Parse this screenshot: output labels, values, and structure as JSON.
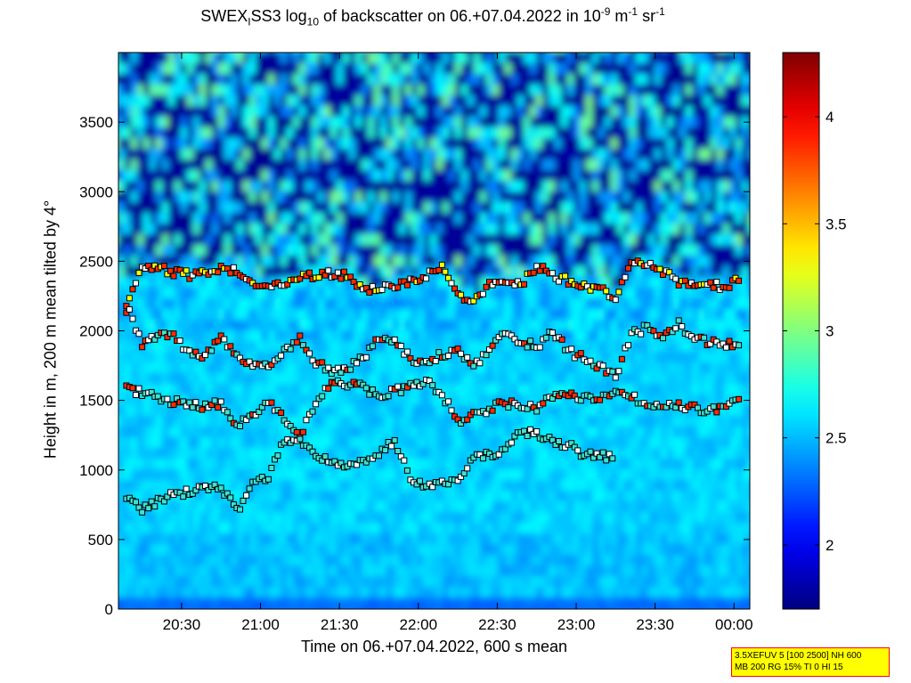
{
  "title": {
    "p1": "SWEX",
    "sub1": "I",
    "p2": "SS3 log",
    "sub2": "10",
    "p3": " of backscatter on 06.+07.04.2022 in 10",
    "sup1": "-9",
    "p4": " m",
    "sup2": "-1",
    "p5": " sr",
    "sup3": "-1"
  },
  "infobox": {
    "line1": "3.5XEFUV 5 [100 2500] NH 600",
    "line2": "MB 200 RG 15% TI 0 HI 15"
  },
  "chart_data": {
    "type": "heatmap",
    "xlabel": "Time on 06.+07.04.2022, 600 s mean",
    "ylabel": "Height in m, 200 m mean tilted by 4°",
    "x_range_hours": [
      20.1,
      24.1
    ],
    "ylim": [
      0,
      4000
    ],
    "x_ticks": [
      {
        "v": 20.5,
        "label": "20:30"
      },
      {
        "v": 21.0,
        "label": "21:00"
      },
      {
        "v": 21.5,
        "label": "21:30"
      },
      {
        "v": 22.0,
        "label": "22:00"
      },
      {
        "v": 22.5,
        "label": "22:30"
      },
      {
        "v": 23.0,
        "label": "23:00"
      },
      {
        "v": 23.5,
        "label": "23:30"
      },
      {
        "v": 24.0,
        "label": "00:00"
      }
    ],
    "y_ticks": [
      {
        "v": 0,
        "label": "0"
      },
      {
        "v": 500,
        "label": "500"
      },
      {
        "v": 1000,
        "label": "1000"
      },
      {
        "v": 1500,
        "label": "1500"
      },
      {
        "v": 2000,
        "label": "2000"
      },
      {
        "v": 2500,
        "label": "2500"
      },
      {
        "v": 3000,
        "label": "3000"
      },
      {
        "v": 3500,
        "label": "3500"
      }
    ],
    "colorbar": {
      "range": [
        1.7,
        4.3
      ],
      "ticks": [
        {
          "v": 2,
          "label": "2"
        },
        {
          "v": 2.5,
          "label": "2.5"
        },
        {
          "v": 3,
          "label": "3"
        },
        {
          "v": 3.5,
          "label": "3.5"
        },
        {
          "v": 4,
          "label": "4"
        }
      ],
      "colormap": "jet"
    },
    "layer_lines": [
      {
        "name": "upper-layer",
        "marker_class": "high",
        "points": [
          [
            20.15,
            2160
          ],
          [
            20.25,
            2480
          ],
          [
            20.35,
            2450
          ],
          [
            20.45,
            2420
          ],
          [
            20.55,
            2400
          ],
          [
            20.65,
            2420
          ],
          [
            20.75,
            2450
          ],
          [
            20.85,
            2430
          ],
          [
            20.95,
            2350
          ],
          [
            21.05,
            2320
          ],
          [
            21.15,
            2350
          ],
          [
            21.25,
            2400
          ],
          [
            21.35,
            2390
          ],
          [
            21.45,
            2410
          ],
          [
            21.55,
            2400
          ],
          [
            21.65,
            2280
          ],
          [
            21.75,
            2300
          ],
          [
            21.85,
            2320
          ],
          [
            21.95,
            2350
          ],
          [
            22.05,
            2400
          ],
          [
            22.15,
            2460
          ],
          [
            22.25,
            2260
          ],
          [
            22.35,
            2200
          ],
          [
            22.45,
            2350
          ],
          [
            22.55,
            2320
          ],
          [
            22.65,
            2330
          ],
          [
            22.75,
            2470
          ],
          [
            22.85,
            2400
          ],
          [
            22.95,
            2360
          ],
          [
            23.05,
            2330
          ],
          [
            23.15,
            2300
          ],
          [
            23.25,
            2250
          ],
          [
            23.35,
            2480
          ],
          [
            23.45,
            2470
          ],
          [
            23.55,
            2420
          ],
          [
            23.65,
            2350
          ],
          [
            23.75,
            2330
          ],
          [
            23.85,
            2330
          ],
          [
            23.95,
            2320
          ],
          [
            24.05,
            2400
          ]
        ]
      },
      {
        "name": "middle-layer",
        "marker_class": "mid",
        "points": [
          [
            20.15,
            2200
          ],
          [
            20.25,
            1900
          ],
          [
            20.35,
            1980
          ],
          [
            20.45,
            1960
          ],
          [
            20.55,
            1850
          ],
          [
            20.65,
            1800
          ],
          [
            20.75,
            1980
          ],
          [
            20.85,
            1800
          ],
          [
            20.95,
            1760
          ],
          [
            21.05,
            1750
          ],
          [
            21.15,
            1850
          ],
          [
            21.25,
            1960
          ],
          [
            21.35,
            1780
          ],
          [
            21.45,
            1720
          ],
          [
            21.55,
            1730
          ],
          [
            21.65,
            1800
          ],
          [
            21.75,
            1940
          ],
          [
            21.85,
            1920
          ],
          [
            21.95,
            1800
          ],
          [
            22.05,
            1780
          ],
          [
            22.15,
            1830
          ],
          [
            22.25,
            1850
          ],
          [
            22.35,
            1750
          ],
          [
            22.45,
            1860
          ],
          [
            22.55,
            1980
          ],
          [
            22.65,
            1930
          ],
          [
            22.75,
            1880
          ],
          [
            22.85,
            2000
          ],
          [
            22.95,
            1850
          ],
          [
            23.05,
            1800
          ],
          [
            23.15,
            1730
          ],
          [
            23.25,
            1680
          ],
          [
            23.35,
            1980
          ],
          [
            23.45,
            2020
          ],
          [
            23.55,
            1970
          ],
          [
            23.65,
            2050
          ],
          [
            23.75,
            1940
          ],
          [
            23.85,
            1920
          ],
          [
            23.95,
            1900
          ],
          [
            24.05,
            1920
          ]
        ]
      },
      {
        "name": "lower-layer",
        "marker_class": "low",
        "points": [
          [
            20.15,
            1580
          ],
          [
            20.25,
            1560
          ],
          [
            20.35,
            1520
          ],
          [
            20.45,
            1490
          ],
          [
            20.55,
            1470
          ],
          [
            20.65,
            1460
          ],
          [
            20.75,
            1480
          ],
          [
            20.85,
            1300
          ],
          [
            20.95,
            1400
          ],
          [
            21.05,
            1480
          ],
          [
            21.15,
            1380
          ],
          [
            21.25,
            1240
          ],
          [
            21.35,
            1480
          ],
          [
            21.45,
            1620
          ],
          [
            21.55,
            1610
          ],
          [
            21.65,
            1600
          ],
          [
            21.75,
            1520
          ],
          [
            21.85,
            1570
          ],
          [
            21.95,
            1600
          ],
          [
            22.05,
            1630
          ],
          [
            22.15,
            1540
          ],
          [
            22.25,
            1350
          ],
          [
            22.35,
            1400
          ],
          [
            22.45,
            1440
          ],
          [
            22.55,
            1480
          ],
          [
            22.65,
            1470
          ],
          [
            22.75,
            1450
          ],
          [
            22.85,
            1540
          ],
          [
            22.95,
            1530
          ],
          [
            23.05,
            1520
          ],
          [
            23.15,
            1510
          ],
          [
            23.25,
            1560
          ],
          [
            23.35,
            1520
          ],
          [
            23.45,
            1480
          ],
          [
            23.55,
            1450
          ],
          [
            23.65,
            1470
          ],
          [
            23.75,
            1440
          ],
          [
            23.85,
            1420
          ],
          [
            23.95,
            1480
          ],
          [
            24.05,
            1550
          ]
        ]
      },
      {
        "name": "bottom-layer",
        "marker_class": "base",
        "points": [
          [
            20.15,
            790
          ],
          [
            20.25,
            710
          ],
          [
            20.35,
            770
          ],
          [
            20.45,
            820
          ],
          [
            20.55,
            850
          ],
          [
            20.65,
            860
          ],
          [
            20.75,
            880
          ],
          [
            20.85,
            700
          ],
          [
            20.95,
            890
          ],
          [
            21.05,
            960
          ],
          [
            21.15,
            1220
          ],
          [
            21.25,
            1200
          ],
          [
            21.35,
            1090
          ],
          [
            21.45,
            1080
          ],
          [
            21.55,
            1030
          ],
          [
            21.65,
            1060
          ],
          [
            21.75,
            1120
          ],
          [
            21.85,
            1220
          ],
          [
            21.95,
            920
          ],
          [
            22.05,
            900
          ],
          [
            22.15,
            910
          ],
          [
            22.25,
            930
          ],
          [
            22.35,
            1110
          ],
          [
            22.45,
            1100
          ],
          [
            22.55,
            1130
          ],
          [
            22.65,
            1280
          ],
          [
            22.75,
            1250
          ],
          [
            22.85,
            1200
          ],
          [
            22.95,
            1180
          ],
          [
            23.05,
            1110
          ],
          [
            23.15,
            1100
          ],
          [
            23.25,
            1090
          ]
        ]
      }
    ],
    "colors": {
      "background_low": "#0a1a9a",
      "marker_outline": "#000000",
      "marker_high": "#ff2a00",
      "marker_mid": "#ffffff",
      "marker_low": "#40e0d0",
      "marker_yellow": "#ffff00",
      "marker_magenta": "#ff00ff"
    }
  }
}
